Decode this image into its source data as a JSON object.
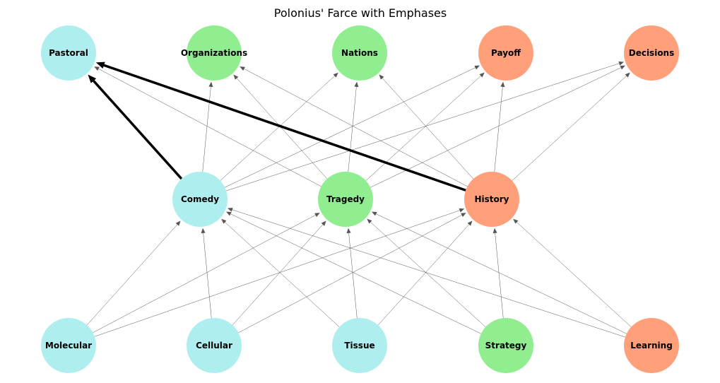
{
  "title": "Polonius' Farce with Emphases",
  "colors": {
    "cyan": "#afeeee",
    "green": "#90ee90",
    "salmon": "#ffa07a",
    "edge": "#555555",
    "emphasis": "#000000"
  },
  "nodes": [
    {
      "id": "pastoral",
      "label": "Pastoral",
      "color": "cyan"
    },
    {
      "id": "organizations",
      "label": "Organizations",
      "color": "green"
    },
    {
      "id": "nations",
      "label": "Nations",
      "color": "green"
    },
    {
      "id": "payoff",
      "label": "Payoff",
      "color": "salmon"
    },
    {
      "id": "decisions",
      "label": "Decisions",
      "color": "salmon"
    },
    {
      "id": "comedy",
      "label": "Comedy",
      "color": "cyan"
    },
    {
      "id": "tragedy",
      "label": "Tragedy",
      "color": "green"
    },
    {
      "id": "history",
      "label": "History",
      "color": "salmon"
    },
    {
      "id": "molecular",
      "label": "Molecular",
      "color": "cyan"
    },
    {
      "id": "cellular",
      "label": "Cellular",
      "color": "cyan"
    },
    {
      "id": "tissue",
      "label": "Tissue",
      "color": "cyan"
    },
    {
      "id": "strategy",
      "label": "Strategy",
      "color": "green"
    },
    {
      "id": "learning",
      "label": "Learning",
      "color": "salmon"
    }
  ],
  "edges": [
    {
      "from": "molecular",
      "to": "comedy"
    },
    {
      "from": "molecular",
      "to": "tragedy"
    },
    {
      "from": "molecular",
      "to": "history"
    },
    {
      "from": "cellular",
      "to": "comedy"
    },
    {
      "from": "cellular",
      "to": "tragedy"
    },
    {
      "from": "cellular",
      "to": "history"
    },
    {
      "from": "tissue",
      "to": "comedy"
    },
    {
      "from": "tissue",
      "to": "tragedy"
    },
    {
      "from": "tissue",
      "to": "history"
    },
    {
      "from": "strategy",
      "to": "comedy"
    },
    {
      "from": "strategy",
      "to": "tragedy"
    },
    {
      "from": "strategy",
      "to": "history"
    },
    {
      "from": "learning",
      "to": "comedy"
    },
    {
      "from": "learning",
      "to": "tragedy"
    },
    {
      "from": "learning",
      "to": "history"
    },
    {
      "from": "comedy",
      "to": "pastoral",
      "emphasis": true
    },
    {
      "from": "comedy",
      "to": "organizations"
    },
    {
      "from": "comedy",
      "to": "nations"
    },
    {
      "from": "comedy",
      "to": "payoff"
    },
    {
      "from": "comedy",
      "to": "decisions"
    },
    {
      "from": "tragedy",
      "to": "pastoral"
    },
    {
      "from": "tragedy",
      "to": "organizations"
    },
    {
      "from": "tragedy",
      "to": "nations"
    },
    {
      "from": "tragedy",
      "to": "payoff"
    },
    {
      "from": "tragedy",
      "to": "decisions"
    },
    {
      "from": "history",
      "to": "pastoral",
      "emphasis": true
    },
    {
      "from": "history",
      "to": "organizations"
    },
    {
      "from": "history",
      "to": "nations"
    },
    {
      "from": "history",
      "to": "payoff"
    },
    {
      "from": "history",
      "to": "decisions"
    }
  ]
}
